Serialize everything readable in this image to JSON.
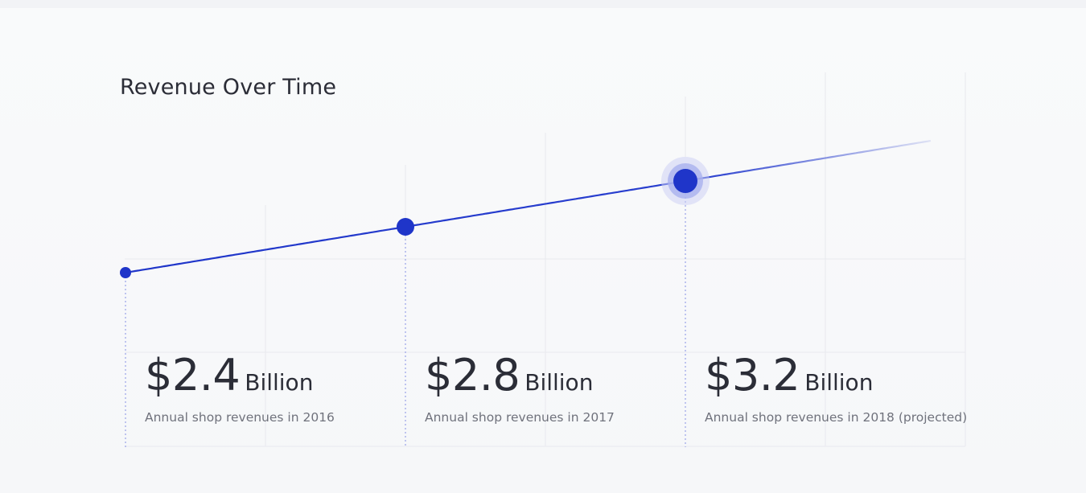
{
  "chart_data": {
    "type": "line",
    "title": "Revenue Over Time",
    "x": [
      "2016",
      "2017",
      "2018"
    ],
    "values": [
      2.4,
      2.8,
      3.2
    ],
    "unit": "Billion",
    "highlighted_point": "2018",
    "projected": [
      "2018"
    ],
    "grid": true,
    "legend": "none",
    "line_color": "#1f35c9",
    "stats": [
      {
        "amount": "$2.4",
        "unit": "Billion",
        "caption": "Annual shop revenues in 2016"
      },
      {
        "amount": "$2.8",
        "unit": "Billion",
        "caption": "Annual shop revenues in 2017"
      },
      {
        "amount": "$3.2",
        "unit": "Billion",
        "caption": "Annual shop revenues in 2018 (projected)"
      }
    ]
  }
}
